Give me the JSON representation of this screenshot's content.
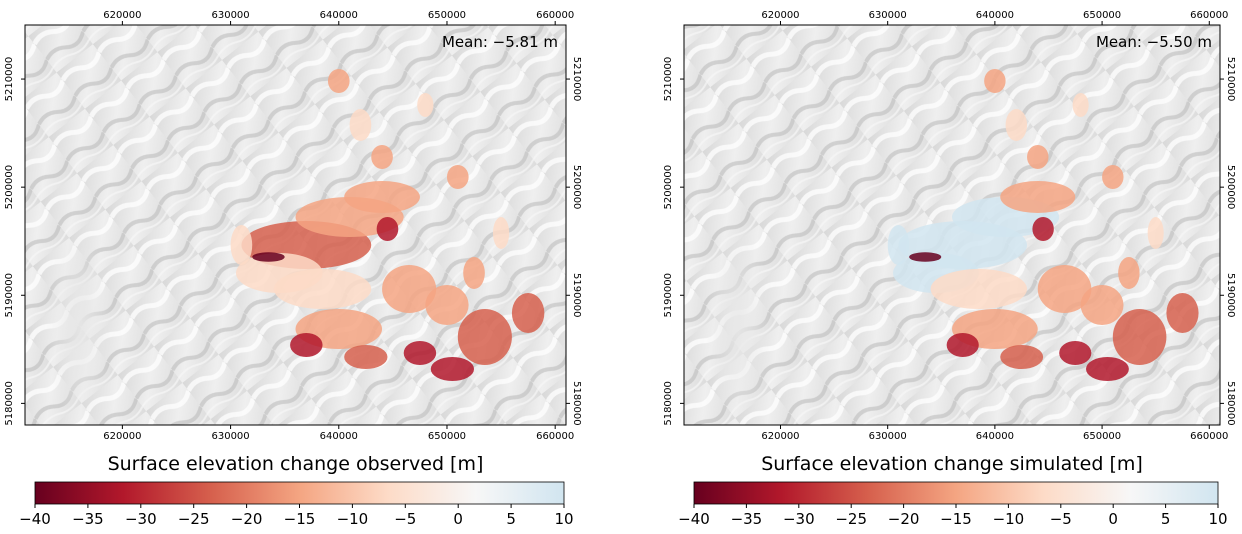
{
  "chart_data": [
    {
      "type": "heatmap",
      "mean_label": "Mean: −5.81 m",
      "colorbar_label": "Surface elevation change observed [m]",
      "x_ticks": [
        620000,
        630000,
        640000,
        650000,
        660000
      ],
      "y_ticks": [
        5180000,
        5190000,
        5200000,
        5210000
      ],
      "xlim": [
        611000,
        661000
      ],
      "ylim": [
        5178000,
        5215000
      ],
      "colorbar_range": [
        -40,
        10
      ],
      "colorbar_ticks": [
        -40,
        -35,
        -30,
        -25,
        -20,
        -15,
        -10,
        -5,
        0,
        5,
        10
      ]
    },
    {
      "type": "heatmap",
      "mean_label": "Mean: −5.50 m",
      "colorbar_label": "Surface elevation change simulated [m]",
      "x_ticks": [
        620000,
        630000,
        640000,
        650000,
        660000
      ],
      "y_ticks": [
        5180000,
        5190000,
        5200000,
        5210000
      ],
      "xlim": [
        611000,
        661000
      ],
      "ylim": [
        5178000,
        5215000
      ],
      "colorbar_range": [
        -40,
        10
      ],
      "colorbar_ticks": [
        -40,
        -35,
        -30,
        -25,
        -20,
        -15,
        -10,
        -5,
        0,
        5,
        10
      ]
    }
  ],
  "colormap": [
    "#67001f",
    "#b2182b",
    "#d6604d",
    "#f4a582",
    "#fddbc7",
    "#f7f7f7",
    "#d1e5f0"
  ]
}
